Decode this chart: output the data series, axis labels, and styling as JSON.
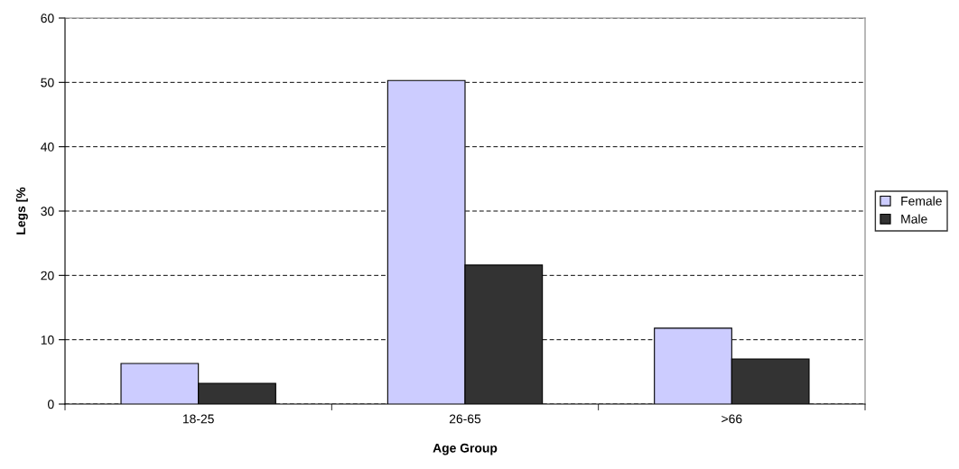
{
  "chart_data": {
    "type": "bar",
    "xlabel": "Age Group",
    "ylabel": "Legs [%",
    "categories": [
      "18-25",
      "26-65",
      ">66"
    ],
    "series": [
      {
        "name": "Female",
        "color": "#ccccff",
        "values": [
          6.3,
          50.3,
          11.8
        ]
      },
      {
        "name": "Male",
        "color": "#333333",
        "values": [
          3.2,
          21.6,
          7.0
        ]
      }
    ],
    "ylim": [
      0,
      60
    ],
    "yticks": [
      0,
      10,
      20,
      30,
      40,
      50,
      60
    ],
    "grid": "y",
    "legend": "right"
  }
}
